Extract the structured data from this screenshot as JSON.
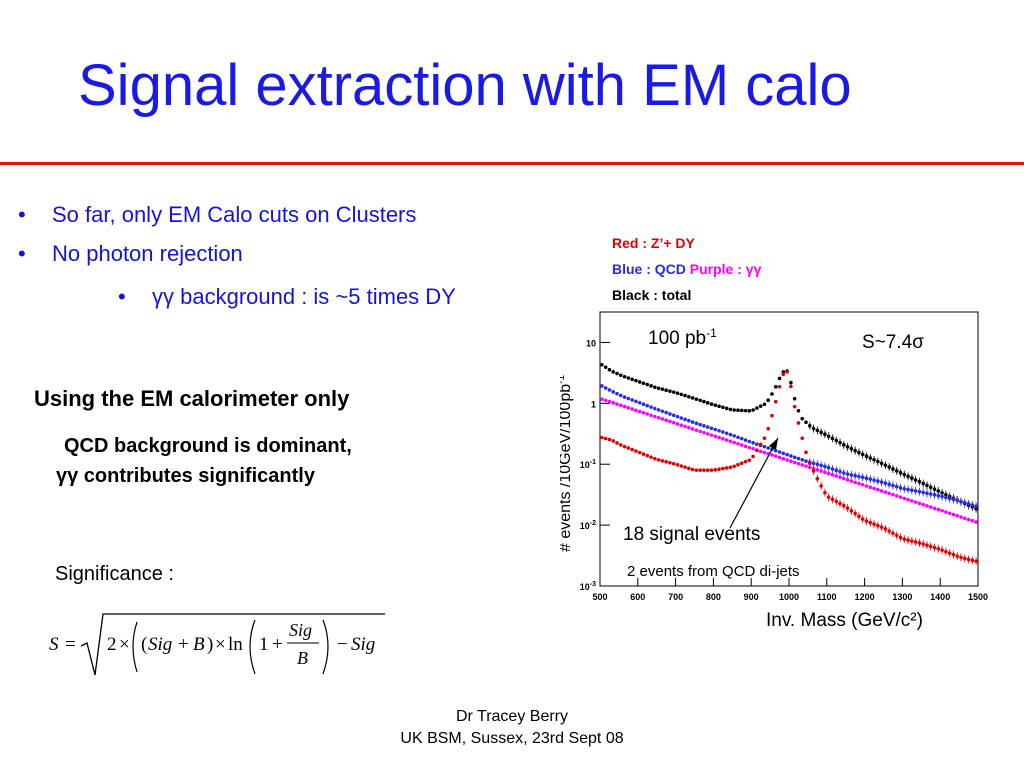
{
  "slide": {
    "title": "Signal extraction with EM calo",
    "bullets": [
      {
        "marker": "•",
        "text": "So far, only EM Calo cuts on Clusters"
      },
      {
        "marker": "•",
        "text": "No photon rejection"
      },
      {
        "marker": "•",
        "greek": "γγ",
        "text": " background : is ~5 times DY"
      }
    ],
    "heading": "Using the EM calorimeter only",
    "qcd_line1": "QCD background is dominant,",
    "qcd_line2_greek": "γγ",
    "qcd_line2": " contributes significantly",
    "significance_label": "Significance :",
    "formula": {
      "lhs": "S",
      "eq": "=",
      "two": "2",
      "times": "×",
      "sig": "Sig",
      "plus": "+",
      "b": "B",
      "ln": "ln",
      "one": "1",
      "minus": "−"
    },
    "legend": {
      "red": "Red : Z’+ DY",
      "blue": "Blue : QCD",
      "purple": "Purple : ",
      "purple_greek": "γγ",
      "black": "Black : total"
    },
    "footer": {
      "line1": "Dr Tracey Berry",
      "line2": "UK BSM, Sussex, 23rd Sept 08"
    },
    "colors": {
      "title": "#1a1ae6",
      "rule": "#e81010",
      "red": "#e00000",
      "blue": "#2a2ae0",
      "purple": "#ff00ff",
      "black": "#000000"
    }
  },
  "chart_data": {
    "type": "scatter",
    "xlabel": "Inv. Mass (GeV/c²)",
    "ylabel": "# events /10GeV/100pb",
    "ylabel_sup": "-1",
    "xlim": [
      500,
      1500
    ],
    "ylim_log10": [
      -3,
      1.5
    ],
    "log_y": true,
    "x_ticks": [
      500,
      600,
      700,
      800,
      900,
      1000,
      1100,
      1200,
      1300,
      1400,
      1500
    ],
    "y_ticks": [
      {
        "value_log10": -3,
        "base": "10",
        "exp": "-3"
      },
      {
        "value_log10": -2,
        "base": "10",
        "exp": "-2"
      },
      {
        "value_log10": -1,
        "base": "10",
        "exp": "-1"
      },
      {
        "value_log10": 0,
        "base": "1",
        "exp": ""
      },
      {
        "value_log10": 1,
        "base": "10",
        "exp": ""
      }
    ],
    "annotations": {
      "lumi": "100 pb",
      "lumi_sup": "-1",
      "significance": "S~7.4",
      "significance_greek": "σ",
      "signal": "18 signal events",
      "qcd_note": "2 events from QCD di-jets"
    },
    "series": [
      {
        "color": "black",
        "x": [
          500,
          530,
          560,
          600,
          650,
          700,
          750,
          800,
          850,
          900,
          940,
          960,
          980,
          990,
          1000,
          1010,
          1030,
          1060,
          1100,
          1150,
          1200,
          1250,
          1300,
          1350,
          1400,
          1450,
          1500
        ],
        "y": [
          4.5,
          3.4,
          2.8,
          2.3,
          1.8,
          1.5,
          1.2,
          0.95,
          0.78,
          0.75,
          1.0,
          1.6,
          3.0,
          3.6,
          3.2,
          1.5,
          0.6,
          0.4,
          0.3,
          0.2,
          0.14,
          0.1,
          0.07,
          0.05,
          0.035,
          0.025,
          0.018
        ]
      },
      {
        "color": "blue",
        "x": [
          500,
          530,
          560,
          600,
          650,
          700,
          750,
          800,
          850,
          900,
          950,
          1000,
          1050,
          1100,
          1150,
          1200,
          1250,
          1300,
          1350,
          1400,
          1450,
          1500
        ],
        "y": [
          2.0,
          1.6,
          1.3,
          1.05,
          0.8,
          0.62,
          0.48,
          0.38,
          0.3,
          0.23,
          0.18,
          0.14,
          0.11,
          0.09,
          0.07,
          0.06,
          0.05,
          0.04,
          0.035,
          0.03,
          0.025,
          0.02
        ]
      },
      {
        "color": "purple",
        "x": [
          500,
          1500
        ],
        "y": [
          1.2,
          0.011
        ]
      },
      {
        "color": "red",
        "x": [
          500,
          530,
          560,
          600,
          650,
          700,
          750,
          800,
          850,
          900,
          940,
          960,
          980,
          990,
          1000,
          1010,
          1030,
          1050,
          1080,
          1100,
          1150,
          1200,
          1250,
          1300,
          1350,
          1400,
          1450,
          1500
        ],
        "y": [
          0.28,
          0.25,
          0.2,
          0.16,
          0.12,
          0.1,
          0.08,
          0.08,
          0.09,
          0.12,
          0.3,
          0.8,
          2.5,
          3.6,
          3.0,
          1.2,
          0.35,
          0.12,
          0.05,
          0.03,
          0.02,
          0.012,
          0.009,
          0.006,
          0.005,
          0.004,
          0.003,
          0.0025
        ]
      }
    ]
  }
}
